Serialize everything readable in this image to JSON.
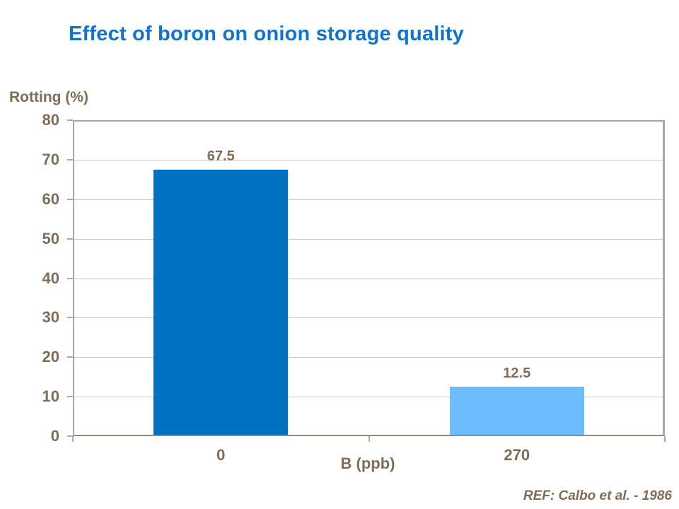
{
  "chart_data": {
    "type": "bar",
    "title": "Effect of boron on onion storage quality",
    "categories": [
      "0",
      "270"
    ],
    "values": [
      67.5,
      12.5
    ],
    "value_labels": [
      "67.5",
      "12.5"
    ],
    "bar_colors": [
      "#0070c0",
      "#6cbdfc"
    ],
    "xlabel": "B (ppb)",
    "ylabel": "Rotting (%)",
    "ylim": [
      0,
      80
    ],
    "ytick_step": 10,
    "ytick_labels": [
      "0",
      "10",
      "20",
      "30",
      "40",
      "50",
      "60",
      "70",
      "80"
    ],
    "grid": true,
    "legend": false,
    "reference": "REF: Calbo et al. - 1986"
  },
  "colors": {
    "title": "#1273cd",
    "label_text": "#7e6d58",
    "gridline": "#c6c6c6",
    "plot_border": "#a8a8a8",
    "baseline": "#8f887d",
    "background": "#ffffff"
  }
}
